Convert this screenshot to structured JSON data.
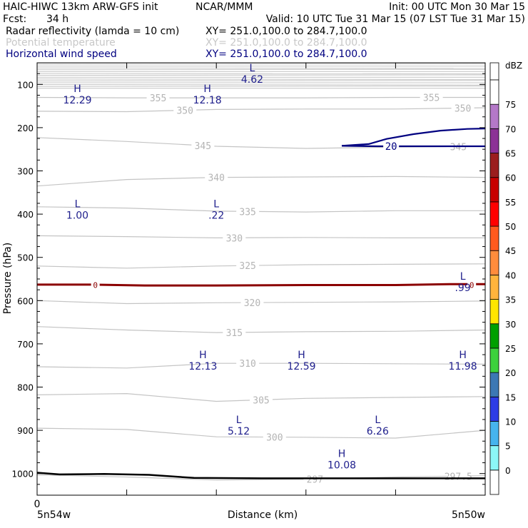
{
  "header": {
    "model": "HAIC-HIWC 13km ARW-GFS init",
    "org": "NCAR/MMM",
    "init": "Init: 00 UTC Mon 30 Mar 15",
    "fcst_label": "Fcst:",
    "fcst_value": "34 h",
    "valid": "Valid: 10 UTC Tue 31 Mar 15 (07 LST Tue 31 Mar 15)",
    "fields": [
      {
        "name": "Radar reflectivity (lamda = 10 cm)",
        "xy": "XY= 251.0,100.0 to 284.7,100.0",
        "color": "#000000"
      },
      {
        "name": "Potential temperature",
        "xy": "XY= 251.0,100.0 to 284.7,100.0",
        "color": "#c8c8c8"
      },
      {
        "name": "Horizontal wind speed",
        "xy": "XY= 251.0,100.0 to 284.7,100.0",
        "color": "#000080"
      }
    ]
  },
  "chart_data": {
    "type": "cross-section",
    "ylabel": "Pressure (hPa)",
    "xlabel": "Distance (km)",
    "x_left_label": "5n54w",
    "x_right_label": "5n50w",
    "x_zero_label": "0",
    "yaxis": {
      "min": 50,
      "max": 1050,
      "inverted": true,
      "ticks": [
        100,
        200,
        300,
        400,
        500,
        600,
        700,
        800,
        900,
        1000
      ]
    },
    "xaxis": {
      "min": 0,
      "max": 100
    },
    "colorbar": {
      "unit": "dBZ",
      "levels": [
        0,
        5,
        10,
        15,
        20,
        25,
        30,
        35,
        40,
        45,
        50,
        55,
        60,
        65,
        70,
        75
      ],
      "colors": [
        "#ffffff",
        "#8cf7f7",
        "#46b4ee",
        "#2d3ce6",
        "#3c78b4",
        "#3cd23c",
        "#00a000",
        "#ffe600",
        "#ffb43c",
        "#ff8c3c",
        "#ff5a1e",
        "#ff0000",
        "#c80000",
        "#9b1e1e",
        "#8c3296",
        "#b478c8",
        "#ffffff"
      ]
    },
    "theta_contours": [
      {
        "value": 355,
        "label": "355"
      },
      {
        "value": 350,
        "label": "350"
      },
      {
        "value": 345,
        "label": "345"
      },
      {
        "value": 340,
        "label": "340"
      },
      {
        "value": 335,
        "label": "335"
      },
      {
        "value": 330,
        "label": "330"
      },
      {
        "value": 325,
        "label": "325"
      },
      {
        "value": 320,
        "label": "320"
      },
      {
        "value": 315,
        "label": "315"
      },
      {
        "value": 310,
        "label": "310"
      },
      {
        "value": 305,
        "label": "305"
      },
      {
        "value": 300,
        "label": "300"
      },
      {
        "value": 297,
        "label": "297"
      },
      {
        "value": 297.5,
        "label": "297.5"
      }
    ],
    "wind_contours": [
      {
        "value": 20,
        "label": "20"
      }
    ],
    "reflectivity_contours": [
      {
        "value": 0,
        "label": "0"
      }
    ],
    "extrema": [
      {
        "type": "L",
        "value": "4.62",
        "x": 48,
        "p": 70
      },
      {
        "type": "H",
        "value": "12.29",
        "x": 9,
        "p": 118
      },
      {
        "type": "H",
        "value": "12.18",
        "x": 38,
        "p": 118
      },
      {
        "type": "L",
        "value": "1.00",
        "x": 9,
        "p": 384
      },
      {
        "type": "L",
        "value": ".22",
        "x": 40,
        "p": 384
      },
      {
        "type": "L",
        "value": ".99",
        "x": 95,
        "p": 552
      },
      {
        "type": "H",
        "value": "12.13",
        "x": 37,
        "p": 733
      },
      {
        "type": "H",
        "value": "12.59",
        "x": 59,
        "p": 733
      },
      {
        "type": "H",
        "value": "11.98",
        "x": 95,
        "p": 733
      },
      {
        "type": "L",
        "value": "5.12",
        "x": 45,
        "p": 883
      },
      {
        "type": "L",
        "value": "6.26",
        "x": 76,
        "p": 883
      },
      {
        "type": "H",
        "value": "10.08",
        "x": 68,
        "p": 962
      }
    ]
  }
}
